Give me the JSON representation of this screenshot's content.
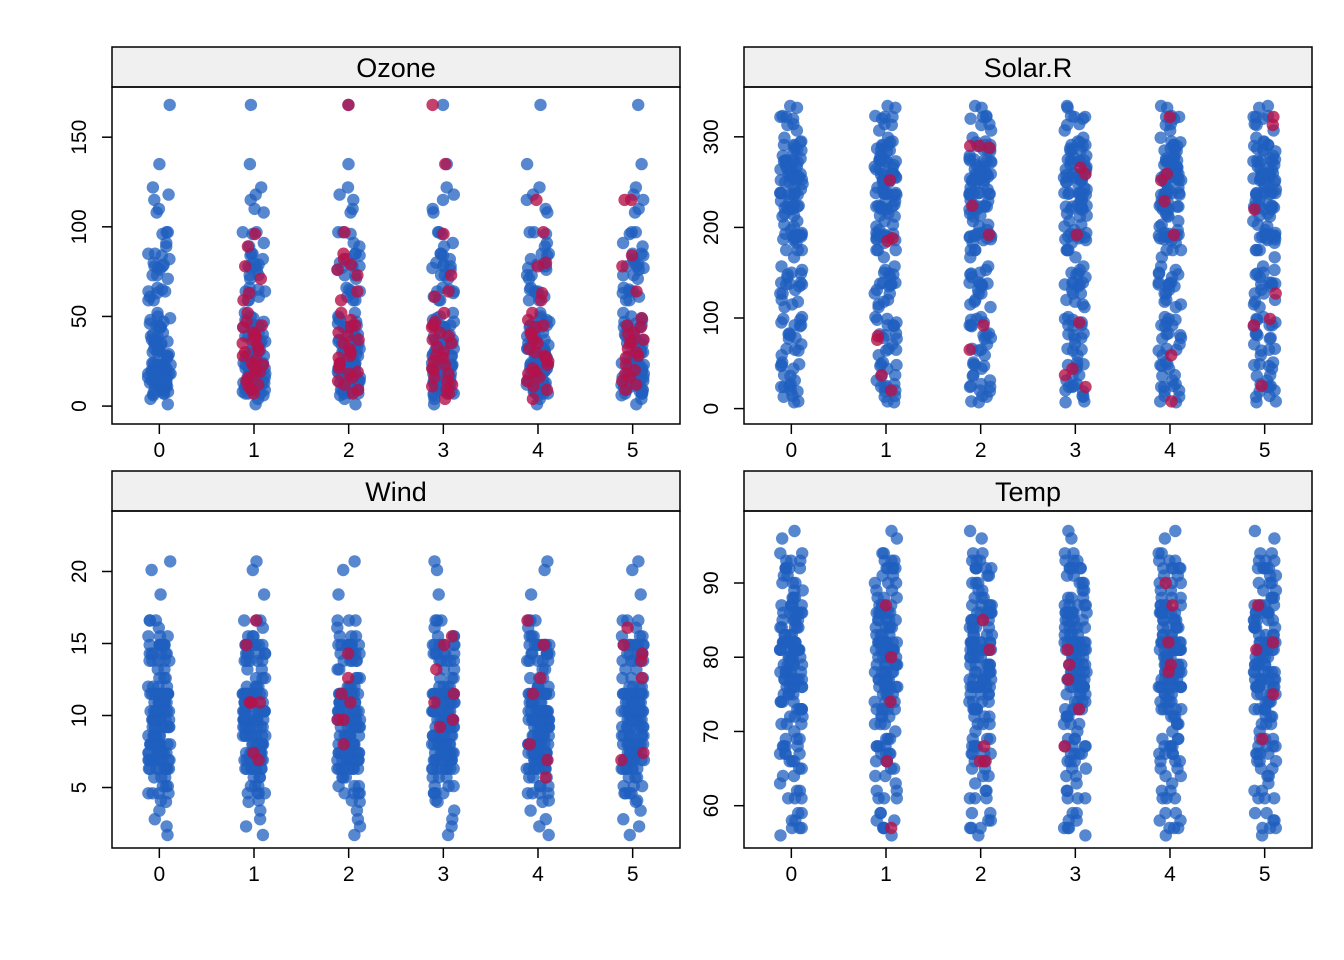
{
  "chart_data": [
    {
      "type": "scatter",
      "title": "Ozone",
      "xlabel": "",
      "ylabel": "",
      "categories": [
        "0",
        "1",
        "2",
        "3",
        "4",
        "5"
      ],
      "xlim": [
        -0.5,
        5.5
      ],
      "ylim": [
        -10,
        178
      ],
      "yticks": [
        "0",
        "50",
        "100",
        "150"
      ],
      "grid": false,
      "colors": {
        "observed": "#1f5fbf",
        "imputed": "#b5124a"
      },
      "observed_values": [
        41,
        36,
        12,
        18,
        28,
        23,
        19,
        8,
        7,
        16,
        11,
        14,
        18,
        14,
        34,
        6,
        30,
        11,
        1,
        11,
        4,
        32,
        23,
        45,
        115,
        37,
        29,
        71,
        39,
        23,
        21,
        37,
        20,
        12,
        13,
        135,
        49,
        32,
        64,
        40,
        77,
        97,
        97,
        85,
        10,
        27,
        7,
        48,
        35,
        61,
        79,
        63,
        16,
        80,
        108,
        20,
        52,
        82,
        50,
        64,
        59,
        39,
        9,
        16,
        78,
        35,
        66,
        122,
        89,
        110,
        44,
        28,
        65,
        22,
        59,
        23,
        31,
        44,
        21,
        9,
        45,
        168,
        73,
        76,
        118,
        84,
        85,
        96,
        78,
        73,
        91,
        47,
        32,
        20,
        23,
        21,
        24,
        44,
        21,
        28,
        9,
        13,
        46,
        18,
        13,
        24,
        16,
        13,
        23,
        36,
        7,
        14,
        30,
        14,
        18,
        20
      ],
      "imputed": [
        {
          "cat": "1",
          "values": [
            12,
            19,
            23,
            28,
            35,
            41,
            37,
            59,
            96,
            89,
            78,
            71,
            63,
            45,
            30,
            18,
            9,
            14,
            24,
            31,
            44,
            52,
            7,
            16,
            22,
            33,
            40,
            47,
            11,
            26,
            38
          ]
        },
        {
          "cat": "2",
          "values": [
            168,
            97,
            85,
            82,
            79,
            73,
            59,
            44,
            37,
            32,
            28,
            23,
            18,
            14,
            9,
            21,
            35,
            41,
            64,
            76,
            12,
            16,
            27,
            30,
            45,
            52,
            7,
            19,
            24,
            39,
            48
          ]
        },
        {
          "cat": "3",
          "values": [
            168,
            135,
            96,
            73,
            64,
            47,
            45,
            41,
            35,
            28,
            23,
            18,
            14,
            9,
            7,
            12,
            30,
            37,
            52,
            61,
            21,
            16,
            27,
            33,
            39,
            44,
            11,
            20,
            25,
            4
          ]
        },
        {
          "cat": "4",
          "values": [
            115,
            97,
            80,
            78,
            63,
            52,
            48,
            45,
            41,
            37,
            32,
            28,
            23,
            21,
            18,
            14,
            11,
            9,
            35,
            40,
            44,
            59,
            27,
            30,
            25,
            19,
            16,
            4
          ]
        },
        {
          "cat": "5",
          "values": [
            115,
            115,
            84,
            78,
            64,
            49,
            45,
            41,
            37,
            35,
            32,
            28,
            23,
            20,
            16,
            12,
            9,
            30,
            44,
            27,
            18,
            14,
            36,
            40
          ]
        }
      ]
    },
    {
      "type": "scatter",
      "title": "Solar.R",
      "xlabel": "",
      "ylabel": "",
      "categories": [
        "0",
        "1",
        "2",
        "3",
        "4",
        "5"
      ],
      "xlim": [
        -0.5,
        5.5
      ],
      "ylim": [
        -17,
        355
      ],
      "yticks": [
        "0",
        "100",
        "200",
        "300"
      ],
      "grid": false,
      "colors": {
        "observed": "#1f5fbf",
        "imputed": "#b5124a"
      },
      "observed_values": [
        190,
        118,
        149,
        313,
        299,
        99,
        19,
        194,
        256,
        290,
        274,
        65,
        334,
        307,
        78,
        322,
        44,
        8,
        320,
        25,
        92,
        66,
        266,
        13,
        252,
        223,
        279,
        286,
        287,
        242,
        186,
        220,
        264,
        127,
        273,
        291,
        323,
        259,
        250,
        148,
        332,
        322,
        191,
        284,
        37,
        120,
        137,
        150,
        59,
        91,
        250,
        135,
        127,
        47,
        98,
        31,
        138,
        269,
        248,
        236,
        101,
        175,
        314,
        276,
        267,
        272,
        175,
        139,
        264,
        175,
        291,
        48,
        260,
        274,
        285,
        187,
        220,
        7,
        258,
        295,
        294,
        223,
        81,
        82,
        213,
        275,
        253,
        254,
        83,
        24,
        77,
        255,
        229,
        207,
        222,
        137,
        192,
        273,
        157,
        64,
        71,
        51,
        115,
        244,
        190,
        259,
        36,
        255,
        212,
        238,
        215,
        153,
        203,
        225,
        237,
        188,
        167,
        197,
        183,
        189,
        95,
        92,
        252,
        220,
        230,
        259,
        236,
        259,
        238,
        24,
        112,
        237,
        224,
        27,
        238,
        201,
        238,
        14,
        139,
        49,
        20,
        193,
        145,
        191,
        131,
        223
      ],
      "imputed": [
        {
          "cat": "1",
          "values": [
            252,
            188,
            185,
            80,
            76,
            37,
            20
          ]
        },
        {
          "cat": "2",
          "values": [
            290,
            290,
            288,
            224,
            192,
            92,
            65
          ]
        },
        {
          "cat": "3",
          "values": [
            266,
            259,
            192,
            95,
            44,
            37,
            24
          ]
        },
        {
          "cat": "4",
          "values": [
            322,
            259,
            252,
            229,
            192,
            59,
            8
          ]
        },
        {
          "cat": "5",
          "values": [
            322,
            313,
            220,
            127,
            99,
            92,
            25
          ]
        }
      ]
    },
    {
      "type": "scatter",
      "title": "Wind",
      "xlabel": "",
      "ylabel": "",
      "categories": [
        "0",
        "1",
        "2",
        "3",
        "4",
        "5"
      ],
      "xlim": [
        -0.5,
        5.5
      ],
      "ylim": [
        0.8,
        24.2
      ],
      "yticks": [
        "5",
        "10",
        "15",
        "20"
      ],
      "grid": false,
      "colors": {
        "observed": "#1f5fbf",
        "imputed": "#b5124a"
      },
      "observed_values": [
        7.4,
        8.0,
        12.6,
        11.5,
        14.3,
        14.9,
        8.6,
        13.8,
        20.1,
        8.6,
        6.9,
        9.7,
        9.2,
        10.9,
        13.2,
        11.5,
        12.0,
        18.4,
        11.5,
        9.7,
        9.7,
        16.6,
        9.7,
        12.0,
        16.6,
        14.9,
        8.0,
        12.0,
        14.9,
        5.7,
        7.4,
        8.6,
        9.7,
        16.1,
        9.2,
        8.6,
        14.3,
        9.7,
        6.9,
        13.8,
        11.5,
        10.9,
        9.2,
        8.0,
        13.8,
        11.5,
        14.9,
        20.7,
        9.2,
        11.5,
        10.3,
        6.3,
        1.7,
        4.6,
        6.3,
        8.0,
        8.0,
        10.3,
        11.5,
        14.9,
        8.0,
        4.1,
        9.2,
        9.2,
        10.9,
        4.6,
        10.9,
        5.1,
        6.3,
        5.7,
        7.4,
        8.6,
        14.3,
        14.9,
        14.9,
        14.3,
        6.9,
        10.3,
        6.3,
        5.1,
        11.5,
        6.9,
        9.7,
        11.5,
        8.6,
        8.0,
        8.6,
        12.0,
        7.4,
        7.4,
        7.4,
        9.2,
        6.9,
        13.8,
        7.4,
        6.9,
        7.4,
        4.6,
        4.0,
        10.3,
        8.0,
        8.6,
        11.5,
        11.5,
        11.5,
        9.7,
        11.5,
        10.3,
        6.3,
        7.4,
        10.9,
        10.3,
        15.5,
        14.3,
        12.6,
        9.7,
        3.4,
        8.0,
        5.7,
        9.7,
        2.3,
        6.3,
        6.3,
        6.9,
        5.1,
        2.8,
        4.6,
        7.4,
        15.5,
        10.9,
        10.3,
        10.9,
        9.7,
        14.9,
        15.5,
        6.3,
        10.9,
        11.5,
        6.9,
        13.8,
        10.3,
        10.3,
        8.0,
        12.6,
        9.2,
        10.3,
        10.3,
        16.6,
        6.9,
        13.2,
        14.3,
        8.0,
        11.5
      ],
      "imputed": [
        {
          "cat": "1",
          "values": [
            16.6,
            14.9,
            10.9,
            10.9,
            10.9,
            7.4,
            6.9
          ]
        },
        {
          "cat": "2",
          "values": [
            14.3,
            12.6,
            11.5,
            10.9,
            9.7,
            9.7,
            8.0
          ]
        },
        {
          "cat": "3",
          "values": [
            15.5,
            14.9,
            13.2,
            11.5,
            10.9,
            9.7,
            9.2
          ]
        },
        {
          "cat": "4",
          "values": [
            16.6,
            14.9,
            12.6,
            11.5,
            8.0,
            6.9,
            5.7
          ]
        },
        {
          "cat": "5",
          "values": [
            16.1,
            14.9,
            14.3,
            13.8,
            12.6,
            7.4,
            6.9
          ]
        }
      ]
    },
    {
      "type": "scatter",
      "title": "Temp",
      "xlabel": "",
      "ylabel": "",
      "categories": [
        "0",
        "1",
        "2",
        "3",
        "4",
        "5"
      ],
      "xlim": [
        -0.5,
        5.5
      ],
      "ylim": [
        54.3,
        99.7
      ],
      "yticks": [
        "60",
        "70",
        "80",
        "90"
      ],
      "grid": false,
      "colors": {
        "observed": "#1f5fbf",
        "imputed": "#b5124a"
      },
      "observed_values": [
        67,
        72,
        74,
        62,
        56,
        66,
        65,
        59,
        61,
        69,
        74,
        69,
        66,
        68,
        58,
        64,
        66,
        57,
        68,
        62,
        59,
        73,
        61,
        61,
        57,
        58,
        57,
        67,
        81,
        79,
        76,
        78,
        74,
        67,
        84,
        85,
        79,
        82,
        87,
        90,
        87,
        93,
        92,
        82,
        80,
        79,
        77,
        72,
        65,
        73,
        76,
        77,
        76,
        76,
        76,
        75,
        78,
        73,
        80,
        77,
        83,
        84,
        85,
        81,
        84,
        83,
        83,
        88,
        92,
        92,
        89,
        82,
        73,
        81,
        91,
        80,
        81,
        82,
        84,
        87,
        85,
        74,
        81,
        82,
        86,
        85,
        82,
        86,
        88,
        86,
        83,
        81,
        81,
        81,
        82,
        86,
        85,
        87,
        89,
        90,
        90,
        92,
        86,
        86,
        82,
        80,
        79,
        77,
        79,
        76,
        78,
        78,
        77,
        72,
        75,
        79,
        81,
        86,
        88,
        97,
        94,
        96,
        94,
        91,
        92,
        93,
        93,
        87,
        84,
        80,
        78,
        75,
        73,
        81,
        76,
        77,
        71,
        71,
        78,
        67,
        76,
        68,
        82,
        64,
        71,
        81,
        69,
        63,
        70,
        77,
        75,
        76,
        68
      ],
      "imputed": [
        {
          "cat": "1",
          "values": [
            87,
            80,
            74,
            66,
            57
          ]
        },
        {
          "cat": "2",
          "values": [
            85,
            81,
            68,
            66,
            66
          ]
        },
        {
          "cat": "3",
          "values": [
            81,
            79,
            77,
            73,
            68
          ]
        },
        {
          "cat": "4",
          "values": [
            90,
            87,
            82,
            79,
            78
          ]
        },
        {
          "cat": "5",
          "values": [
            87,
            82,
            81,
            75,
            69
          ]
        }
      ]
    }
  ]
}
